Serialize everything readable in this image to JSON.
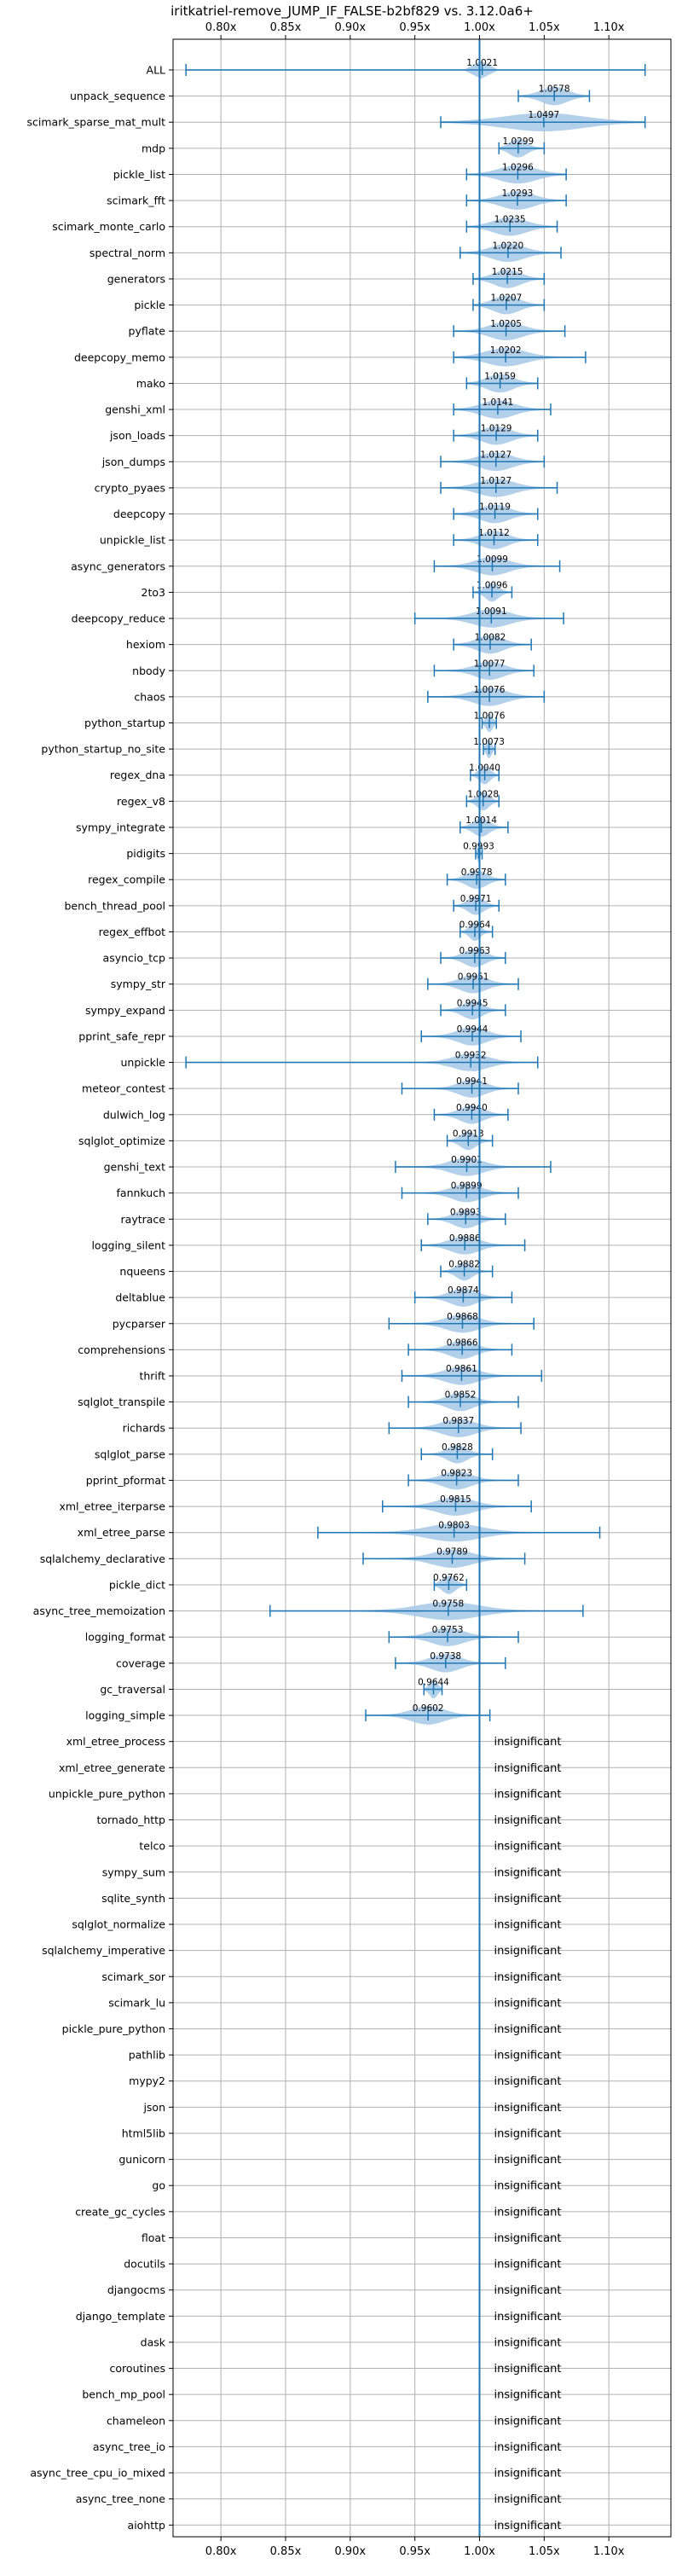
{
  "chart_data": {
    "type": "violin",
    "title": "iritkatriel-remove_JUMP_IF_FALSE-b2bf829 vs. 3.12.0a6+",
    "xlim": [
      0.763,
      1.148
    ],
    "x_ticks": [
      0.8,
      0.85,
      0.9,
      0.95,
      1.0,
      1.05,
      1.1
    ],
    "x_tick_labels": [
      "0.80x",
      "0.85x",
      "0.90x",
      "0.95x",
      "1.00x",
      "1.05x",
      "1.10x"
    ],
    "grid": true,
    "reference_line": 1.0,
    "colors": {
      "line": "#1f77b4",
      "violin": "#a6c8e8",
      "grid": "#b0b0b0",
      "axis": "#000000"
    },
    "insignificant_text": "insignificant",
    "benchmarks": [
      {
        "name": "ALL",
        "value": 1.0021,
        "label": "1.0021",
        "min": 0.773,
        "max": 1.128,
        "spread": 0.006
      },
      {
        "name": "unpack_sequence",
        "value": 1.0578,
        "label": "1.0578",
        "min": 1.03,
        "max": 1.085,
        "spread": 0.02
      },
      {
        "name": "scimark_sparse_mat_mult",
        "value": 1.0497,
        "label": "1.0497",
        "min": 0.97,
        "max": 1.128,
        "spread": 0.06
      },
      {
        "name": "mdp",
        "value": 1.0299,
        "label": "1.0299",
        "min": 1.015,
        "max": 1.05,
        "spread": 0.013
      },
      {
        "name": "pickle_list",
        "value": 1.0296,
        "label": "1.0296",
        "min": 0.99,
        "max": 1.067,
        "spread": 0.028
      },
      {
        "name": "scimark_fft",
        "value": 1.0293,
        "label": "1.0293",
        "min": 0.99,
        "max": 1.067,
        "spread": 0.025
      },
      {
        "name": "scimark_monte_carlo",
        "value": 1.0235,
        "label": "1.0235",
        "min": 0.99,
        "max": 1.06,
        "spread": 0.025
      },
      {
        "name": "spectral_norm",
        "value": 1.022,
        "label": "1.0220",
        "min": 0.985,
        "max": 1.063,
        "spread": 0.025
      },
      {
        "name": "generators",
        "value": 1.0215,
        "label": "1.0215",
        "min": 0.995,
        "max": 1.05,
        "spread": 0.02
      },
      {
        "name": "pickle",
        "value": 1.0207,
        "label": "1.0207",
        "min": 0.995,
        "max": 1.05,
        "spread": 0.02
      },
      {
        "name": "pyflate",
        "value": 1.0205,
        "label": "1.0205",
        "min": 0.98,
        "max": 1.066,
        "spread": 0.025
      },
      {
        "name": "deepcopy_memo",
        "value": 1.0202,
        "label": "1.0202",
        "min": 0.98,
        "max": 1.082,
        "spread": 0.03
      },
      {
        "name": "mako",
        "value": 1.0159,
        "label": "1.0159",
        "min": 0.99,
        "max": 1.045,
        "spread": 0.02
      },
      {
        "name": "genshi_xml",
        "value": 1.0141,
        "label": "1.0141",
        "min": 0.98,
        "max": 1.055,
        "spread": 0.025
      },
      {
        "name": "json_loads",
        "value": 1.0129,
        "label": "1.0129",
        "min": 0.98,
        "max": 1.045,
        "spread": 0.022
      },
      {
        "name": "json_dumps",
        "value": 1.0127,
        "label": "1.0127",
        "min": 0.97,
        "max": 1.05,
        "spread": 0.025
      },
      {
        "name": "crypto_pyaes",
        "value": 1.0127,
        "label": "1.0127",
        "min": 0.97,
        "max": 1.06,
        "spread": 0.027
      },
      {
        "name": "deepcopy",
        "value": 1.0119,
        "label": "1.0119",
        "min": 0.98,
        "max": 1.045,
        "spread": 0.022
      },
      {
        "name": "unpickle_list",
        "value": 1.0112,
        "label": "1.0112",
        "min": 0.98,
        "max": 1.045,
        "spread": 0.02
      },
      {
        "name": "async_generators",
        "value": 1.0099,
        "label": "1.0099",
        "min": 0.965,
        "max": 1.062,
        "spread": 0.025
      },
      {
        "name": "2to3",
        "value": 1.0096,
        "label": "1.0096",
        "min": 0.995,
        "max": 1.025,
        "spread": 0.01
      },
      {
        "name": "deepcopy_reduce",
        "value": 1.0091,
        "label": "1.0091",
        "min": 0.95,
        "max": 1.065,
        "spread": 0.028
      },
      {
        "name": "hexiom",
        "value": 1.0082,
        "label": "1.0082",
        "min": 0.98,
        "max": 1.04,
        "spread": 0.02
      },
      {
        "name": "nbody",
        "value": 1.0077,
        "label": "1.0077",
        "min": 0.965,
        "max": 1.042,
        "spread": 0.022
      },
      {
        "name": "chaos",
        "value": 1.0076,
        "label": "1.0076",
        "min": 0.96,
        "max": 1.05,
        "spread": 0.025
      },
      {
        "name": "python_startup",
        "value": 1.0076,
        "label": "1.0076",
        "min": 1.002,
        "max": 1.013,
        "spread": 0.005
      },
      {
        "name": "python_startup_no_site",
        "value": 1.0073,
        "label": "1.0073",
        "min": 1.003,
        "max": 1.012,
        "spread": 0.004
      },
      {
        "name": "regex_dna",
        "value": 1.004,
        "label": "1.0040",
        "min": 0.993,
        "max": 1.015,
        "spread": 0.008
      },
      {
        "name": "regex_v8",
        "value": 1.0028,
        "label": "1.0028",
        "min": 0.99,
        "max": 1.015,
        "spread": 0.009
      },
      {
        "name": "sympy_integrate",
        "value": 1.0014,
        "label": "1.0014",
        "min": 0.985,
        "max": 1.022,
        "spread": 0.012
      },
      {
        "name": "pidigits",
        "value": 0.9993,
        "label": "0.9993",
        "min": 0.997,
        "max": 1.002,
        "spread": 0.002
      },
      {
        "name": "regex_compile",
        "value": 0.9978,
        "label": "0.9978",
        "min": 0.975,
        "max": 1.02,
        "spread": 0.015
      },
      {
        "name": "bench_thread_pool",
        "value": 0.9971,
        "label": "0.9971",
        "min": 0.98,
        "max": 1.015,
        "spread": 0.012
      },
      {
        "name": "regex_effbot",
        "value": 0.9964,
        "label": "0.9964",
        "min": 0.985,
        "max": 1.01,
        "spread": 0.008
      },
      {
        "name": "asyncio_tcp",
        "value": 0.9963,
        "label": "0.9963",
        "min": 0.97,
        "max": 1.02,
        "spread": 0.016
      },
      {
        "name": "sympy_str",
        "value": 0.9951,
        "label": "0.9951",
        "min": 0.96,
        "max": 1.03,
        "spread": 0.02
      },
      {
        "name": "sympy_expand",
        "value": 0.9945,
        "label": "0.9945",
        "min": 0.97,
        "max": 1.02,
        "spread": 0.015
      },
      {
        "name": "pprint_safe_repr",
        "value": 0.9944,
        "label": "0.9944",
        "min": 0.955,
        "max": 1.032,
        "spread": 0.022
      },
      {
        "name": "unpickle",
        "value": 0.9932,
        "label": "0.9932",
        "min": 0.773,
        "max": 1.045,
        "spread": 0.025
      },
      {
        "name": "meteor_contest",
        "value": 0.9941,
        "label": "0.9941",
        "min": 0.94,
        "max": 1.03,
        "spread": 0.02
      },
      {
        "name": "dulwich_log",
        "value": 0.994,
        "label": "0.9940",
        "min": 0.965,
        "max": 1.022,
        "spread": 0.018
      },
      {
        "name": "sqlglot_optimize",
        "value": 0.9913,
        "label": "0.9913",
        "min": 0.975,
        "max": 1.01,
        "spread": 0.012
      },
      {
        "name": "genshi_text",
        "value": 0.9901,
        "label": "0.9901",
        "min": 0.935,
        "max": 1.055,
        "spread": 0.025
      },
      {
        "name": "fannkuch",
        "value": 0.9899,
        "label": "0.9899",
        "min": 0.94,
        "max": 1.03,
        "spread": 0.022
      },
      {
        "name": "raytrace",
        "value": 0.9893,
        "label": "0.9893",
        "min": 0.96,
        "max": 1.02,
        "spread": 0.018
      },
      {
        "name": "logging_silent",
        "value": 0.9886,
        "label": "0.9886",
        "min": 0.955,
        "max": 1.035,
        "spread": 0.022
      },
      {
        "name": "nqueens",
        "value": 0.9882,
        "label": "0.9882",
        "min": 0.97,
        "max": 1.01,
        "spread": 0.012
      },
      {
        "name": "deltablue",
        "value": 0.9874,
        "label": "0.9874",
        "min": 0.95,
        "max": 1.025,
        "spread": 0.02
      },
      {
        "name": "pycparser",
        "value": 0.9868,
        "label": "0.9868",
        "min": 0.93,
        "max": 1.042,
        "spread": 0.025
      },
      {
        "name": "comprehensions",
        "value": 0.9866,
        "label": "0.9866",
        "min": 0.945,
        "max": 1.025,
        "spread": 0.02
      },
      {
        "name": "thrift",
        "value": 0.9861,
        "label": "0.9861",
        "min": 0.94,
        "max": 1.048,
        "spread": 0.025
      },
      {
        "name": "sqlglot_transpile",
        "value": 0.9852,
        "label": "0.9852",
        "min": 0.945,
        "max": 1.03,
        "spread": 0.02
      },
      {
        "name": "richards",
        "value": 0.9837,
        "label": "0.9837",
        "min": 0.93,
        "max": 1.032,
        "spread": 0.025
      },
      {
        "name": "sqlglot_parse",
        "value": 0.9828,
        "label": "0.9828",
        "min": 0.955,
        "max": 1.01,
        "spread": 0.015
      },
      {
        "name": "pprint_pformat",
        "value": 0.9823,
        "label": "0.9823",
        "min": 0.945,
        "max": 1.03,
        "spread": 0.022
      },
      {
        "name": "xml_etree_iterparse",
        "value": 0.9815,
        "label": "0.9815",
        "min": 0.925,
        "max": 1.04,
        "spread": 0.028
      },
      {
        "name": "xml_etree_parse",
        "value": 0.9803,
        "label": "0.9803",
        "min": 0.875,
        "max": 1.093,
        "spread": 0.04
      },
      {
        "name": "sqlalchemy_declarative",
        "value": 0.9789,
        "label": "0.9789",
        "min": 0.91,
        "max": 1.035,
        "spread": 0.03
      },
      {
        "name": "pickle_dict",
        "value": 0.9762,
        "label": "0.9762",
        "min": 0.965,
        "max": 0.99,
        "spread": 0.01
      },
      {
        "name": "async_tree_memoization",
        "value": 0.9758,
        "label": "0.9758",
        "min": 0.838,
        "max": 1.08,
        "spread": 0.045
      },
      {
        "name": "logging_format",
        "value": 0.9753,
        "label": "0.9753",
        "min": 0.93,
        "max": 1.03,
        "spread": 0.025
      },
      {
        "name": "coverage",
        "value": 0.9738,
        "label": "0.9738",
        "min": 0.935,
        "max": 1.02,
        "spread": 0.022
      },
      {
        "name": "gc_traversal",
        "value": 0.9644,
        "label": "0.9644",
        "min": 0.957,
        "max": 0.971,
        "spread": 0.006
      },
      {
        "name": "logging_simple",
        "value": 0.9602,
        "label": "0.9602",
        "min": 0.912,
        "max": 1.008,
        "spread": 0.025
      },
      {
        "name": "xml_etree_process",
        "insignificant": true
      },
      {
        "name": "xml_etree_generate",
        "insignificant": true
      },
      {
        "name": "unpickle_pure_python",
        "insignificant": true
      },
      {
        "name": "tornado_http",
        "insignificant": true
      },
      {
        "name": "telco",
        "insignificant": true
      },
      {
        "name": "sympy_sum",
        "insignificant": true
      },
      {
        "name": "sqlite_synth",
        "insignificant": true
      },
      {
        "name": "sqlglot_normalize",
        "insignificant": true
      },
      {
        "name": "sqlalchemy_imperative",
        "insignificant": true
      },
      {
        "name": "scimark_sor",
        "insignificant": true
      },
      {
        "name": "scimark_lu",
        "insignificant": true
      },
      {
        "name": "pickle_pure_python",
        "insignificant": true
      },
      {
        "name": "pathlib",
        "insignificant": true
      },
      {
        "name": "mypy2",
        "insignificant": true
      },
      {
        "name": "json",
        "insignificant": true
      },
      {
        "name": "html5lib",
        "insignificant": true
      },
      {
        "name": "gunicorn",
        "insignificant": true
      },
      {
        "name": "go",
        "insignificant": true
      },
      {
        "name": "create_gc_cycles",
        "insignificant": true
      },
      {
        "name": "float",
        "insignificant": true
      },
      {
        "name": "docutils",
        "insignificant": true
      },
      {
        "name": "djangocms",
        "insignificant": true
      },
      {
        "name": "django_template",
        "insignificant": true
      },
      {
        "name": "dask",
        "insignificant": true
      },
      {
        "name": "coroutines",
        "insignificant": true
      },
      {
        "name": "bench_mp_pool",
        "insignificant": true
      },
      {
        "name": "chameleon",
        "insignificant": true
      },
      {
        "name": "async_tree_io",
        "insignificant": true
      },
      {
        "name": "async_tree_cpu_io_mixed",
        "insignificant": true
      },
      {
        "name": "async_tree_none",
        "insignificant": true
      },
      {
        "name": "aiohttp",
        "insignificant": true
      }
    ]
  }
}
